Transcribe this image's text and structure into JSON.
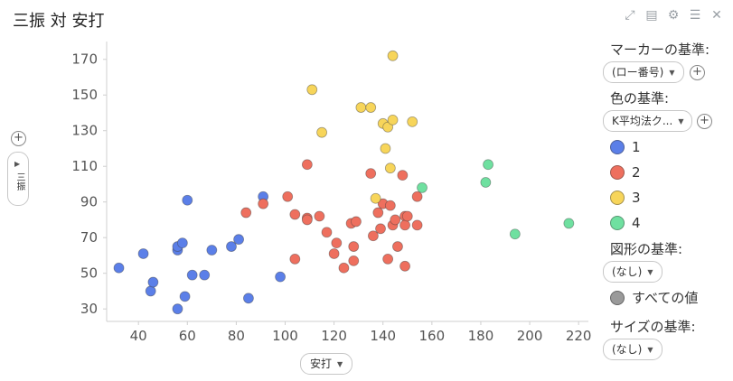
{
  "title": "三振 対 安打",
  "toolbar": {
    "icons": [
      "expand-icon",
      "notes-icon",
      "gear-icon",
      "list-icon",
      "close-icon"
    ],
    "glyphs": [
      "⤢",
      "▤",
      "⚙",
      "☰",
      "✕"
    ]
  },
  "x_axis_pill": {
    "label": "安打"
  },
  "y_axis_pill": {
    "label": "三振"
  },
  "legend": {
    "marker_title": "マーカーの基準:",
    "marker_value": "(ロー番号)",
    "color_title": "色の基準:",
    "color_value": "K平均法ク...",
    "color_items": [
      {
        "label": "1",
        "color": "#5b7fe8"
      },
      {
        "label": "2",
        "color": "#ee6f5e"
      },
      {
        "label": "3",
        "color": "#f7d55a"
      },
      {
        "label": "4",
        "color": "#6fe0a0"
      }
    ],
    "shape_title": "図形の基準:",
    "shape_value": "(なし)",
    "shape_item": {
      "label": "すべての値",
      "color": "#9a9a9a"
    },
    "size_title": "サイズの基準:",
    "size_value": "(なし)"
  },
  "chart_data": {
    "type": "scatter",
    "title": "三振 対 安打",
    "xlabel": "安打",
    "ylabel": "三振",
    "xlim": [
      27,
      224
    ],
    "ylim": [
      23,
      180
    ],
    "x_ticks": [
      40,
      60,
      80,
      100,
      120,
      140,
      160,
      180,
      200,
      220
    ],
    "y_ticks": [
      30,
      50,
      70,
      90,
      110,
      130,
      150,
      170
    ],
    "grid": false,
    "legend_position": "right",
    "series": [
      {
        "name": "1",
        "color": "#5b7fe8",
        "points": [
          [
            32,
            53
          ],
          [
            42,
            61
          ],
          [
            45,
            40
          ],
          [
            46,
            45
          ],
          [
            56,
            30
          ],
          [
            56,
            63
          ],
          [
            56,
            65
          ],
          [
            58,
            67
          ],
          [
            59,
            37
          ],
          [
            60,
            91
          ],
          [
            62,
            49
          ],
          [
            67,
            49
          ],
          [
            70,
            63
          ],
          [
            78,
            65
          ],
          [
            81,
            69
          ],
          [
            85,
            36
          ],
          [
            91,
            93
          ],
          [
            98,
            48
          ]
        ]
      },
      {
        "name": "2",
        "color": "#ee6f5e",
        "points": [
          [
            84,
            84
          ],
          [
            91,
            89
          ],
          [
            101,
            93
          ],
          [
            104,
            58
          ],
          [
            104,
            83
          ],
          [
            109,
            81
          ],
          [
            109,
            80
          ],
          [
            109,
            111
          ],
          [
            114,
            82
          ],
          [
            117,
            73
          ],
          [
            120,
            61
          ],
          [
            121,
            67
          ],
          [
            124,
            53
          ],
          [
            127,
            78
          ],
          [
            128,
            65
          ],
          [
            128,
            57
          ],
          [
            129,
            79
          ],
          [
            135,
            106
          ],
          [
            136,
            71
          ],
          [
            138,
            84
          ],
          [
            139,
            75
          ],
          [
            140,
            89
          ],
          [
            142,
            58
          ],
          [
            143,
            88
          ],
          [
            144,
            77
          ],
          [
            145,
            80
          ],
          [
            146,
            65
          ],
          [
            148,
            105
          ],
          [
            149,
            82
          ],
          [
            149,
            77
          ],
          [
            149,
            54
          ],
          [
            150,
            82
          ],
          [
            154,
            77
          ],
          [
            154,
            93
          ]
        ]
      },
      {
        "name": "3",
        "color": "#f7d55a",
        "points": [
          [
            111,
            153
          ],
          [
            115,
            129
          ],
          [
            131,
            143
          ],
          [
            135,
            143
          ],
          [
            137,
            92
          ],
          [
            140,
            134
          ],
          [
            141,
            120
          ],
          [
            142,
            132
          ],
          [
            143,
            109
          ],
          [
            144,
            136
          ],
          [
            144,
            172
          ],
          [
            152,
            135
          ]
        ]
      },
      {
        "name": "4",
        "color": "#6fe0a0",
        "points": [
          [
            156,
            98
          ],
          [
            182,
            101
          ],
          [
            183,
            111
          ],
          [
            194,
            72
          ],
          [
            216,
            78
          ]
        ]
      }
    ]
  }
}
